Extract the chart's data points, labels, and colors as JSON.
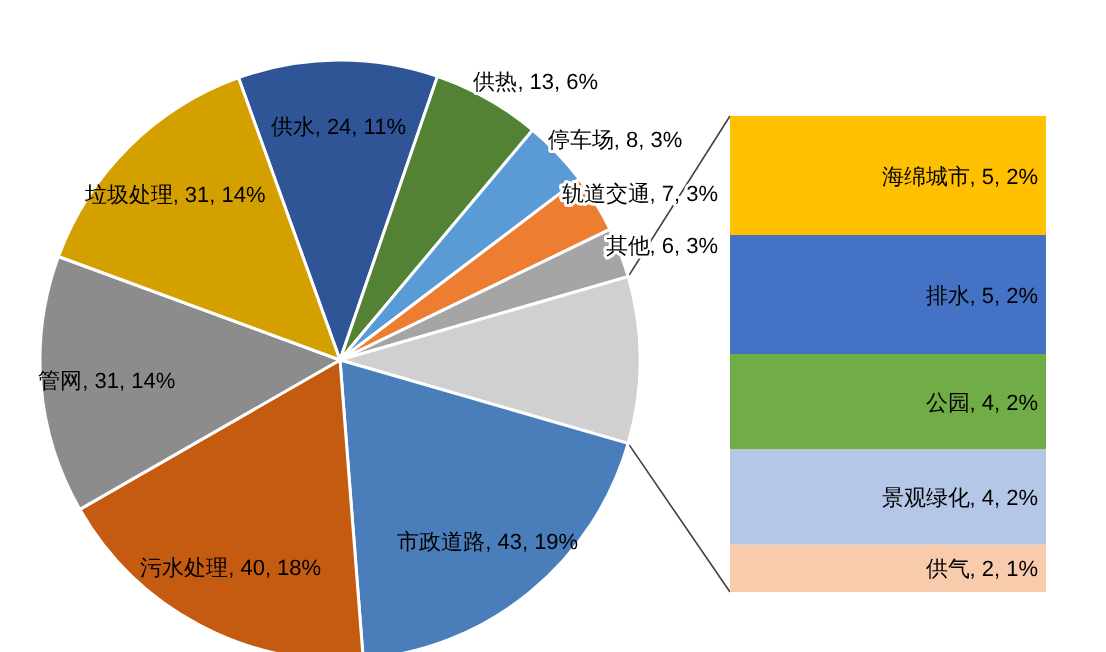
{
  "chart_data": [
    {
      "type": "pie",
      "categories": [
        "供水",
        "供热",
        "停车场",
        "轨道交通",
        "其他",
        null,
        "市政道路",
        "污水处理",
        "管网",
        "垃圾处理"
      ],
      "values": [
        24,
        13,
        8,
        7,
        6,
        20,
        43,
        40,
        31,
        31
      ],
      "colors": [
        "#2f5597",
        "#548235",
        "#5b9bd5",
        "#ed7d31",
        "#a5a5a5",
        "#d0d0d0",
        "#4a7ebb",
        "#c55a11",
        "#8c8c8c",
        "#d4a000"
      ],
      "value_labels": [
        "24, 11%",
        "13, 6%",
        "8, 3%",
        "7, 3%",
        "6, 3%",
        null,
        "43, 19%",
        "40, 18%",
        "31, 14%",
        "31, 14%"
      ]
    },
    {
      "type": "bar",
      "stacked": true,
      "categories": [
        null
      ],
      "series": [
        {
          "color": "#f8cbad",
          "values": [
            2
          ],
          "value_labels": [
            "供气, 2, 1%"
          ]
        },
        {
          "color": "#b4c7e7",
          "values": [
            4
          ],
          "value_labels": [
            "景观绿化, 4, 2%"
          ]
        },
        {
          "color": "#70ad47",
          "values": [
            4
          ],
          "value_labels": [
            "公园, 4, 2%"
          ]
        },
        {
          "color": "#4472c4",
          "values": [
            5
          ],
          "value_labels": [
            "排水, 5, 2%"
          ]
        },
        {
          "color": "#ffc000",
          "values": [
            5
          ],
          "value_labels": [
            "海绵城市, 5, 2%"
          ]
        }
      ]
    }
  ]
}
